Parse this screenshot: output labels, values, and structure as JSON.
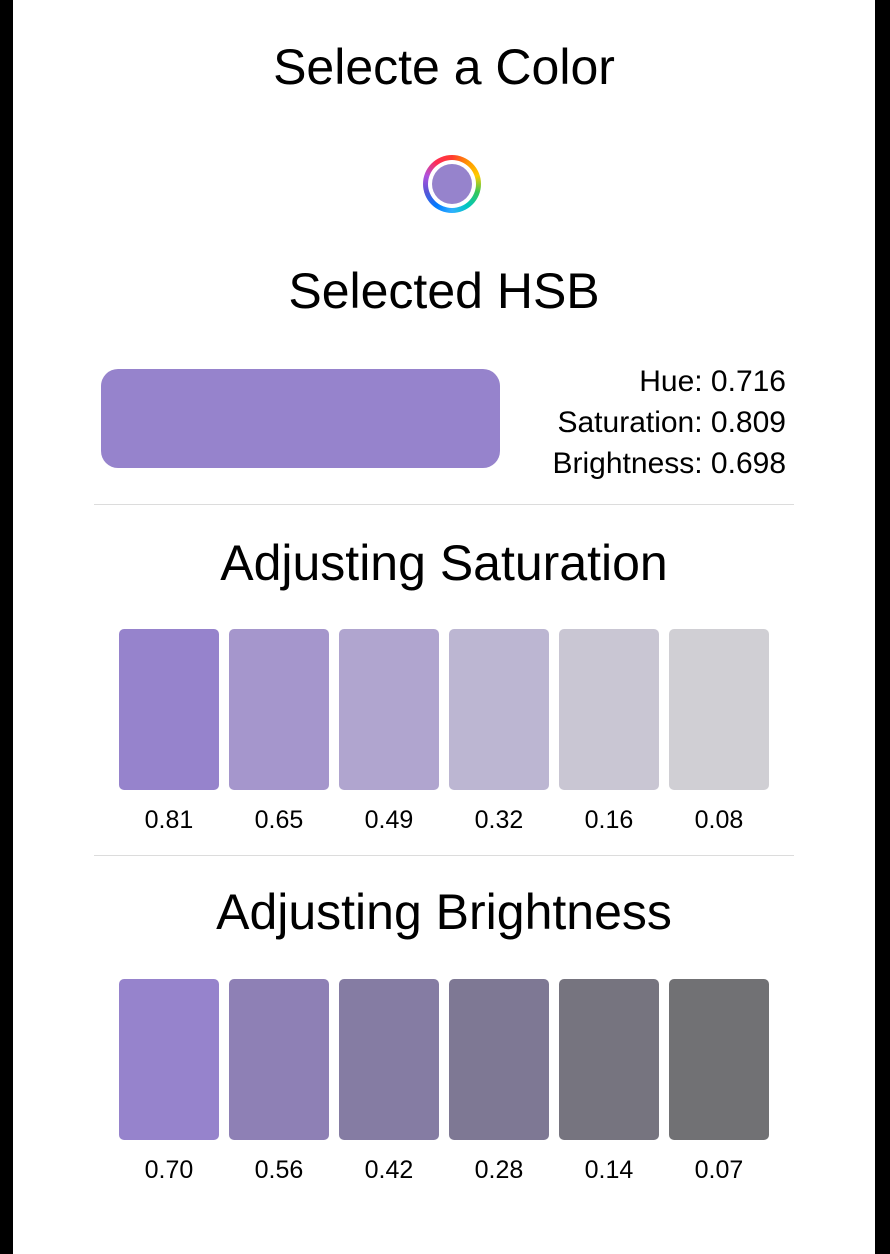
{
  "title": "Selecte a Color",
  "picker": {
    "icon": "color-wheel-icon",
    "color": "#9683cc"
  },
  "selected": {
    "heading": "Selected HSB",
    "color": "#9683cc",
    "hue_label": "Hue: 0.716",
    "saturation_label": "Saturation: 0.809",
    "brightness_label": "Brightness: 0.698"
  },
  "saturation": {
    "heading": "Adjusting Saturation",
    "swatches": [
      {
        "label": "0.81",
        "color": "#9683cc"
      },
      {
        "label": "0.65",
        "color": "#a596cc"
      },
      {
        "label": "0.49",
        "color": "#b0a5cf"
      },
      {
        "label": "0.32",
        "color": "#bcb6d2"
      },
      {
        "label": "0.16",
        "color": "#c9c6d3"
      },
      {
        "label": "0.08",
        "color": "#d0cfd4"
      }
    ]
  },
  "brightness": {
    "heading": "Adjusting Brightness",
    "swatches": [
      {
        "label": "0.70",
        "color": "#9683cc"
      },
      {
        "label": "0.56",
        "color": "#8e80b5"
      },
      {
        "label": "0.42",
        "color": "#857ca3"
      },
      {
        "label": "0.28",
        "color": "#7e7894"
      },
      {
        "label": "0.14",
        "color": "#76747f"
      },
      {
        "label": "0.07",
        "color": "#717174"
      }
    ]
  }
}
